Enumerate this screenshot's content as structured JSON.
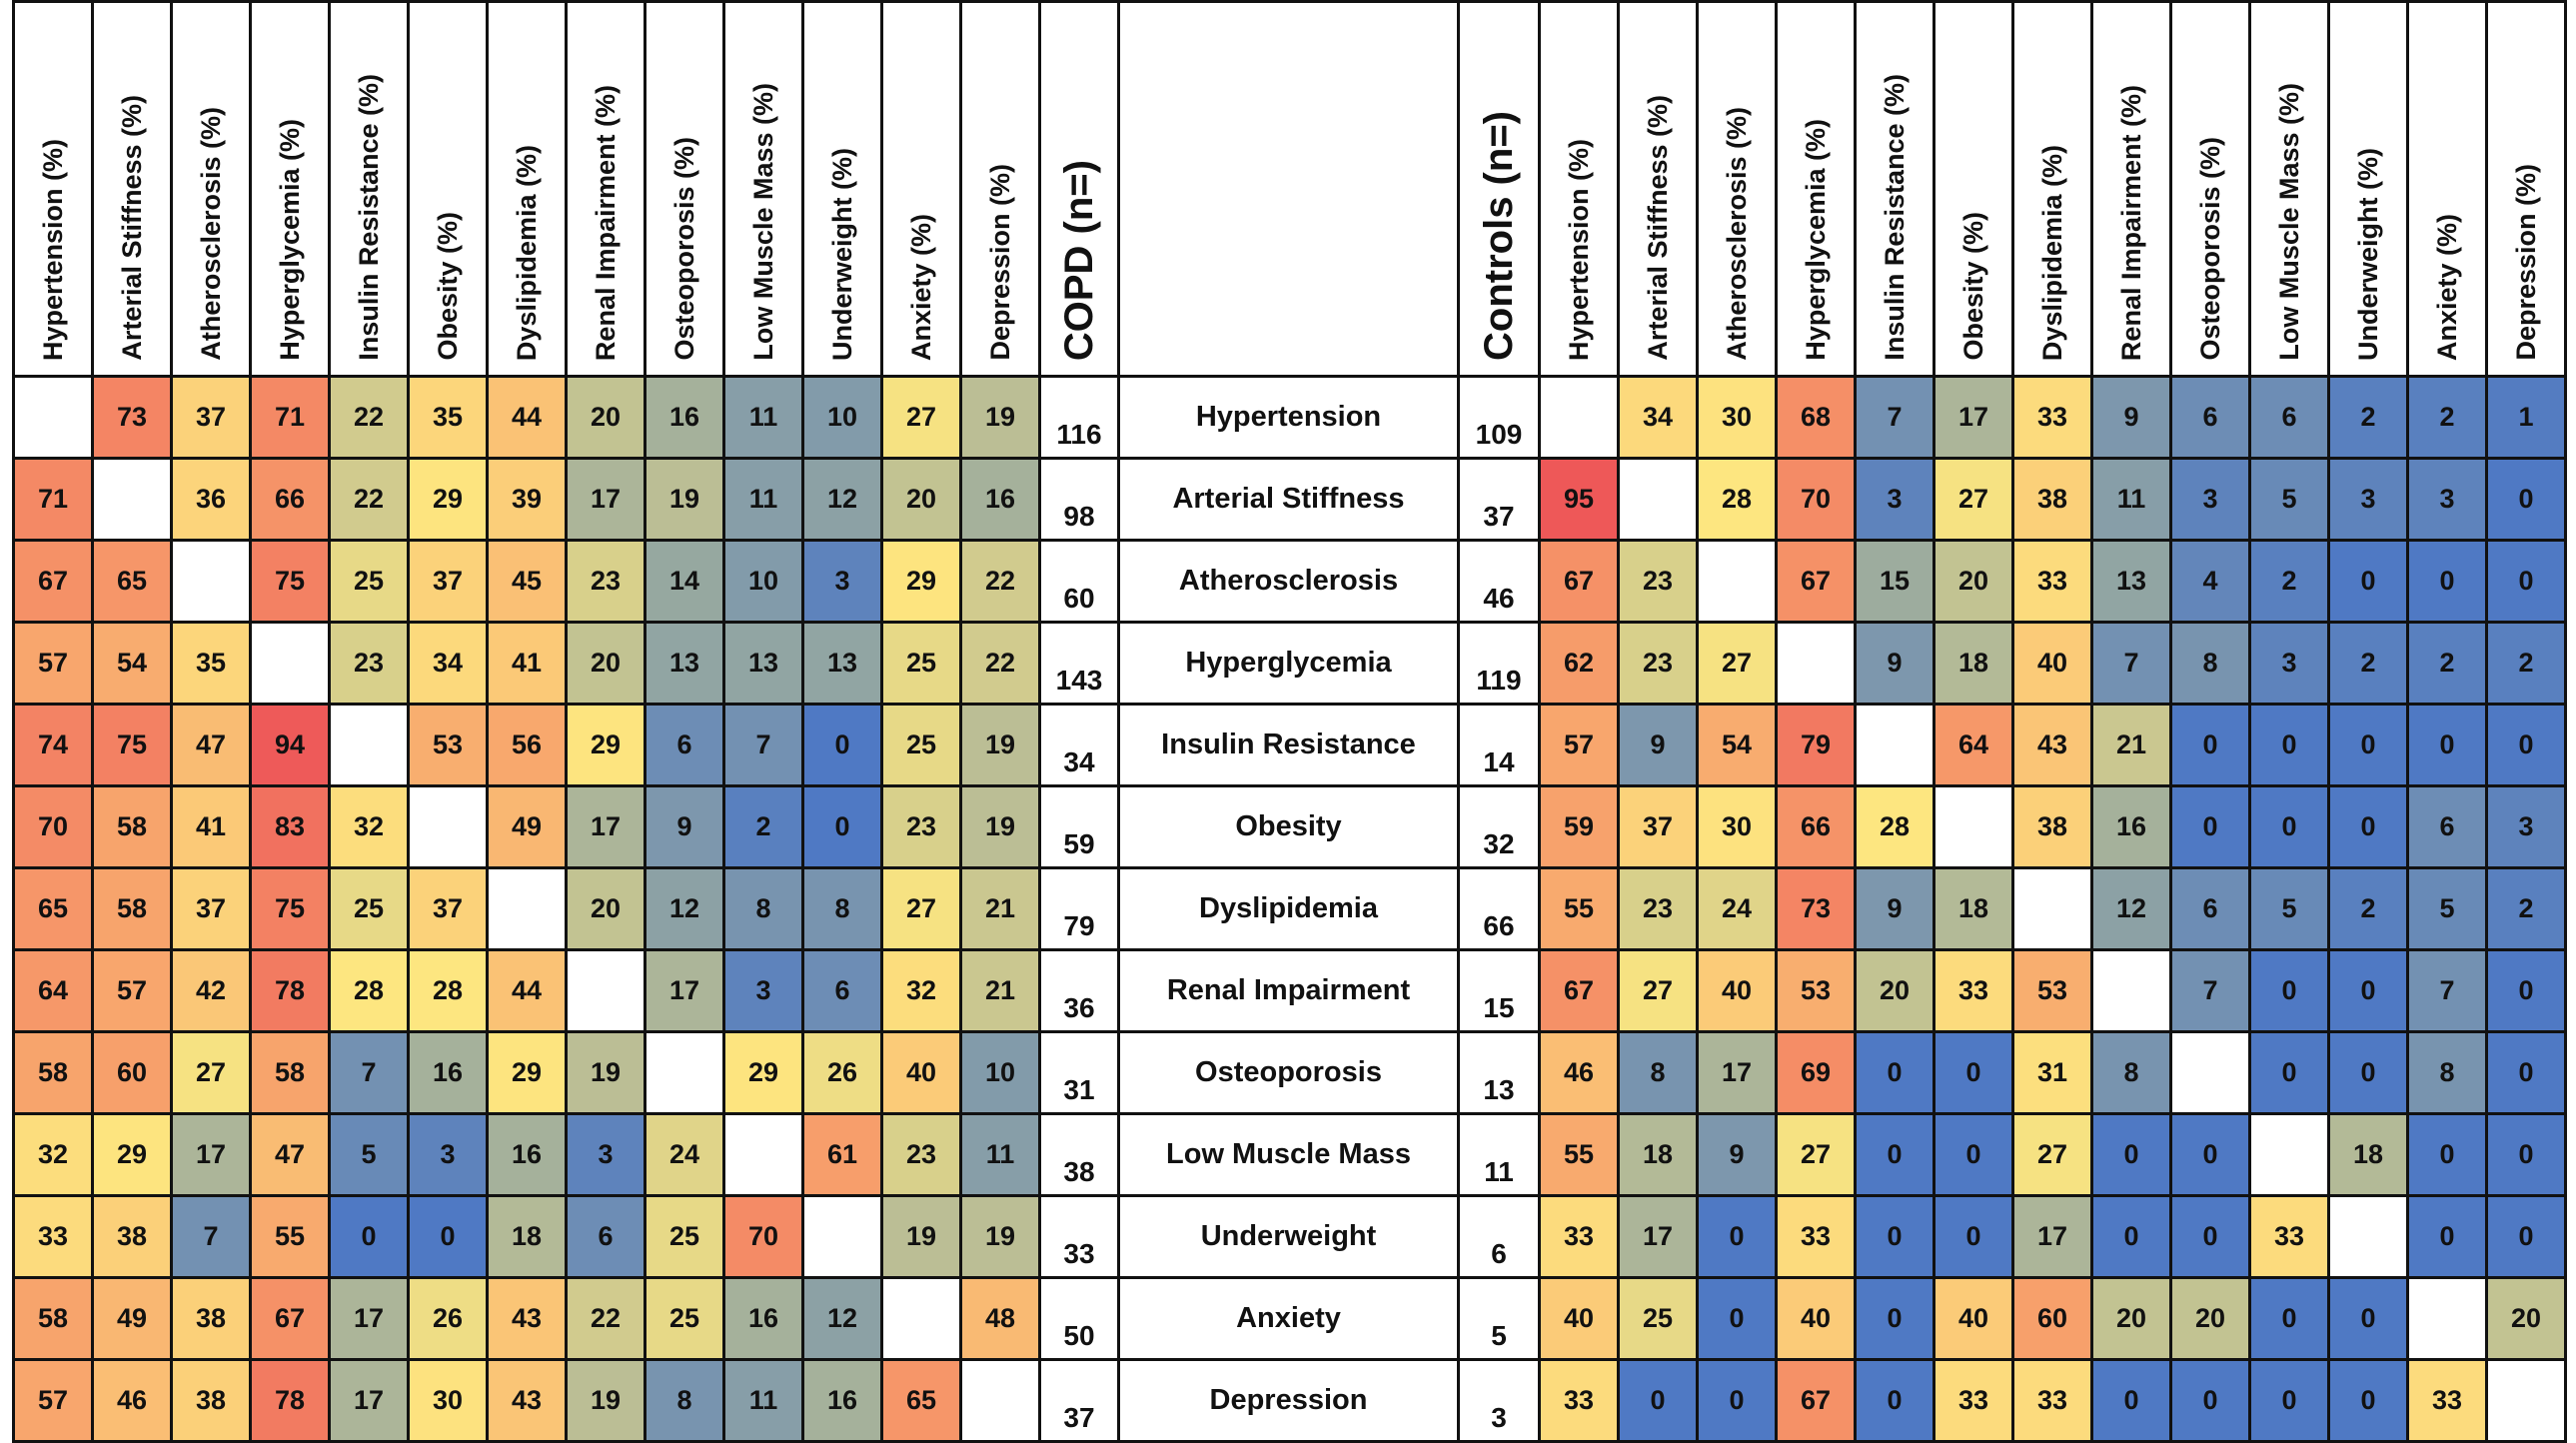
{
  "table": {
    "left_headers": [
      "Hypertension (%)",
      "Arterial Stiffness (%)",
      "Atherosclerosis (%)",
      "Hyperglycemia (%)",
      "Insulin Resistance (%)",
      "Obesity (%)",
      "Dyslipidemia (%)",
      "Renal Impairment (%)",
      "Osteoporosis (%)",
      "Low Muscle Mass (%)",
      "Underweight (%)",
      "Anxiety (%)",
      "Depression (%)"
    ],
    "copd_header": "COPD (n=)",
    "controls_header": "Controls (n=)",
    "right_headers": [
      "Hypertension (%)",
      "Arterial Stiffness (%)",
      "Atherosclerosis (%)",
      "Hyperglycemia (%)",
      "Insulin Resistance (%)",
      "Obesity (%)",
      "Dyslipidemia (%)",
      "Renal Impairment (%)",
      "Osteoporosis (%)",
      "Low Muscle Mass (%)",
      "Underweight (%)",
      "Anxiety (%)",
      "Depression (%)"
    ],
    "rows": [
      {
        "label": "Hypertension",
        "copd_n": 116,
        "copd": [
          null,
          73,
          37,
          71,
          22,
          35,
          44,
          20,
          16,
          11,
          10,
          27,
          19
        ],
        "controls_n": 109,
        "controls": [
          null,
          34,
          30,
          68,
          7,
          17,
          33,
          9,
          6,
          6,
          2,
          2,
          1
        ]
      },
      {
        "label": "Arterial Stiffness",
        "copd_n": 98,
        "copd": [
          71,
          null,
          36,
          66,
          22,
          29,
          39,
          17,
          19,
          11,
          12,
          20,
          16
        ],
        "controls_n": 37,
        "controls": [
          95,
          null,
          28,
          70,
          3,
          27,
          38,
          11,
          3,
          5,
          3,
          3,
          0
        ]
      },
      {
        "label": "Atherosclerosis",
        "copd_n": 60,
        "copd": [
          67,
          65,
          null,
          75,
          25,
          37,
          45,
          23,
          14,
          10,
          3,
          29,
          22
        ],
        "controls_n": 46,
        "controls": [
          67,
          23,
          null,
          67,
          15,
          20,
          33,
          13,
          4,
          2,
          0,
          0,
          0
        ]
      },
      {
        "label": "Hyperglycemia",
        "copd_n": 143,
        "copd": [
          57,
          54,
          35,
          null,
          23,
          34,
          41,
          20,
          13,
          13,
          13,
          25,
          22
        ],
        "controls_n": 119,
        "controls": [
          62,
          23,
          27,
          null,
          9,
          18,
          40,
          7,
          8,
          3,
          2,
          2,
          2
        ]
      },
      {
        "label": "Insulin Resistance",
        "copd_n": 34,
        "copd": [
          74,
          75,
          47,
          94,
          null,
          53,
          56,
          29,
          6,
          7,
          0,
          25,
          19
        ],
        "controls_n": 14,
        "controls": [
          57,
          9,
          54,
          79,
          null,
          64,
          43,
          21,
          0,
          0,
          0,
          0,
          0
        ]
      },
      {
        "label": "Obesity",
        "copd_n": 59,
        "copd": [
          70,
          58,
          41,
          83,
          32,
          null,
          49,
          17,
          9,
          2,
          0,
          23,
          19
        ],
        "controls_n": 32,
        "controls": [
          59,
          37,
          30,
          66,
          28,
          null,
          38,
          16,
          0,
          0,
          0,
          6,
          3
        ]
      },
      {
        "label": "Dyslipidemia",
        "copd_n": 79,
        "copd": [
          65,
          58,
          37,
          75,
          25,
          37,
          null,
          20,
          12,
          8,
          8,
          27,
          21
        ],
        "controls_n": 66,
        "controls": [
          55,
          23,
          24,
          73,
          9,
          18,
          null,
          12,
          6,
          5,
          2,
          5,
          2
        ]
      },
      {
        "label": "Renal Impairment",
        "copd_n": 36,
        "copd": [
          64,
          57,
          42,
          78,
          28,
          28,
          44,
          null,
          17,
          3,
          6,
          32,
          21
        ],
        "controls_n": 15,
        "controls": [
          67,
          27,
          40,
          53,
          20,
          33,
          53,
          null,
          7,
          0,
          0,
          7,
          0
        ]
      },
      {
        "label": "Osteoporosis",
        "copd_n": 31,
        "copd": [
          58,
          60,
          27,
          58,
          7,
          16,
          29,
          19,
          null,
          29,
          26,
          40,
          10
        ],
        "controls_n": 13,
        "controls": [
          46,
          8,
          17,
          69,
          0,
          0,
          31,
          8,
          null,
          0,
          0,
          8,
          0
        ]
      },
      {
        "label": "Low Muscle Mass",
        "copd_n": 38,
        "copd": [
          32,
          29,
          17,
          47,
          5,
          3,
          16,
          3,
          24,
          null,
          61,
          23,
          11
        ],
        "controls_n": 11,
        "controls": [
          55,
          18,
          9,
          27,
          0,
          0,
          27,
          0,
          0,
          null,
          18,
          0,
          0
        ]
      },
      {
        "label": "Underweight",
        "copd_n": 33,
        "copd": [
          33,
          38,
          7,
          55,
          0,
          0,
          18,
          6,
          25,
          70,
          null,
          19,
          19
        ],
        "controls_n": 6,
        "controls": [
          33,
          17,
          0,
          33,
          0,
          0,
          17,
          0,
          0,
          33,
          null,
          0,
          0
        ]
      },
      {
        "label": "Anxiety",
        "copd_n": 50,
        "copd": [
          58,
          49,
          38,
          67,
          17,
          26,
          43,
          22,
          25,
          16,
          12,
          null,
          48
        ],
        "controls_n": 5,
        "controls": [
          40,
          25,
          0,
          40,
          0,
          40,
          60,
          20,
          20,
          0,
          0,
          null,
          20
        ]
      },
      {
        "label": "Depression",
        "copd_n": 37,
        "copd": [
          57,
          46,
          38,
          78,
          17,
          30,
          43,
          19,
          8,
          11,
          16,
          65,
          null
        ],
        "controls_n": 3,
        "controls": [
          33,
          0,
          0,
          67,
          0,
          33,
          33,
          0,
          0,
          0,
          0,
          33,
          null
        ]
      }
    ]
  }
}
